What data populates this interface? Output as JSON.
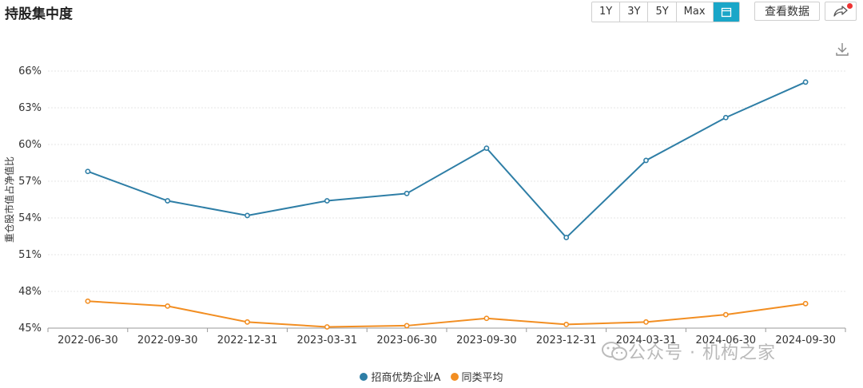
{
  "header": {
    "title": "持股集中度",
    "range_buttons": [
      "1Y",
      "3Y",
      "5Y",
      "Max"
    ],
    "calendar_icon": "calendar-icon",
    "data_button": "查看数据",
    "share_icon": "share-icon"
  },
  "colors": {
    "series_a": "#2e7ea6",
    "series_b": "#f28e22",
    "accent": "#1aa6c8"
  },
  "watermark": "公众号 · 机构之家",
  "chart_data": {
    "type": "line",
    "ylabel": "重仓股市值占净值比",
    "xlabel": "",
    "categories": [
      "2022-06-30",
      "2022-09-30",
      "2022-12-31",
      "2023-03-31",
      "2023-06-30",
      "2023-09-30",
      "2023-12-31",
      "2024-03-31",
      "2024-06-30",
      "2024-09-30"
    ],
    "ylim": [
      45,
      66
    ],
    "yticks": [
      "45%",
      "48%",
      "51%",
      "54%",
      "57%",
      "60%",
      "63%",
      "66%"
    ],
    "ytick_values": [
      45,
      48,
      51,
      54,
      57,
      60,
      63,
      66
    ],
    "grid": true,
    "legend_position": "bottom-center",
    "series": [
      {
        "name": "招商优势企业A",
        "color": "#2e7ea6",
        "values": [
          57.8,
          55.4,
          54.2,
          55.4,
          56.0,
          59.7,
          52.4,
          58.7,
          62.2,
          65.1
        ]
      },
      {
        "name": "同类平均",
        "color": "#f28e22",
        "values": [
          47.2,
          46.8,
          45.5,
          45.1,
          45.2,
          45.8,
          45.3,
          45.5,
          46.1,
          47.0
        ]
      }
    ]
  }
}
